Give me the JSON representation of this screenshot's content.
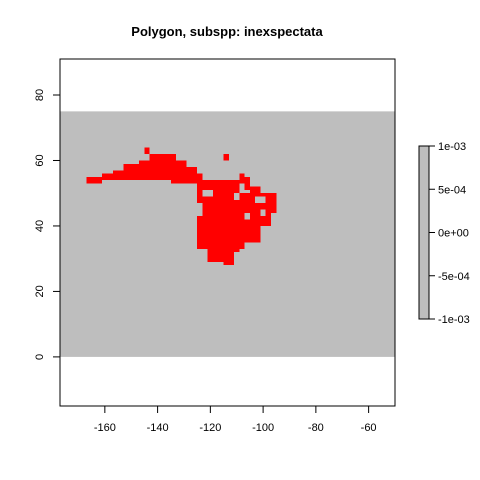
{
  "chart_data": {
    "type": "heatmap",
    "title": "Polygon, subspp: inexspectata",
    "xlabel": "",
    "ylabel": "",
    "xlim": [
      -177,
      -50
    ],
    "ylim": [
      -15,
      91
    ],
    "xticks": [
      -160,
      -140,
      -120,
      -100,
      -80,
      -60
    ],
    "yticks": [
      0,
      20,
      40,
      60,
      80
    ],
    "xtick_labels": [
      "-160",
      "-140",
      "-120",
      "-100",
      "-80",
      "-60"
    ],
    "ytick_labels": [
      "0",
      "20",
      "40",
      "60",
      "80"
    ],
    "raster_extent": {
      "xmin": -177,
      "xmax": -50,
      "ymin": 0,
      "ymax": 75
    },
    "background_color": "#bebebe",
    "presence_color": "#ff0000",
    "cell_size": 2,
    "presence_rows": [
      {
        "y": 63,
        "ranges": [
          [
            -145,
            -143
          ]
        ]
      },
      {
        "y": 61,
        "ranges": [
          [
            -115,
            -113
          ]
        ]
      },
      {
        "y": 59,
        "ranges": [
          [
            -141,
            -129
          ]
        ]
      },
      {
        "y": 57,
        "ranges": [
          [
            -149,
            -125
          ]
        ]
      },
      {
        "y": 55,
        "ranges": [
          [
            -161,
            -123
          ],
          [
            -109,
            -107
          ]
        ]
      },
      {
        "y": 53,
        "ranges": [
          [
            -125,
            -105
          ]
        ]
      },
      {
        "y": 51,
        "ranges": [
          [
            -121,
            -115
          ],
          [
            -113,
            -109
          ],
          [
            -105,
            -101
          ]
        ]
      },
      {
        "y": 49,
        "ranges": [
          [
            -117,
            -111
          ],
          [
            -109,
            -95
          ]
        ]
      },
      {
        "y": 47,
        "ranges": [
          [
            -117,
            -107
          ],
          [
            -101,
            -95
          ]
        ]
      },
      {
        "y": 45,
        "ranges": [
          [
            -115,
            -107
          ],
          [
            -105,
            -103
          ],
          [
            -101,
            -95
          ]
        ]
      },
      {
        "y": 43,
        "ranges": [
          [
            -115,
            -109
          ],
          [
            -105,
            -97
          ]
        ]
      },
      {
        "y": 41,
        "ranges": [
          [
            -115,
            -105
          ],
          [
            -101,
            -97
          ]
        ]
      },
      {
        "y": 39,
        "ranges": [
          [
            -115,
            -103
          ]
        ]
      },
      {
        "y": 37,
        "ranges": [
          [
            -115,
            -105
          ]
        ]
      },
      {
        "y": 35,
        "ranges": [
          [
            -117,
            -107
          ]
        ]
      },
      {
        "y": 33,
        "ranges": [
          [
            -117,
            -109
          ]
        ]
      },
      {
        "y": 31,
        "ranges": [
          [
            -117,
            -111
          ]
        ]
      },
      {
        "y": 29,
        "ranges": [
          [
            -115,
            -111
          ]
        ]
      }
    ],
    "presence_rects": [
      {
        "x": [
          -167,
          -161
        ],
        "y": [
          53,
          55
        ]
      },
      {
        "x": [
          -157,
          -151
        ],
        "y": [
          54,
          57
        ]
      },
      {
        "x": [
          -153,
          -147
        ],
        "y": [
          56,
          59
        ]
      },
      {
        "x": [
          -147,
          -137
        ],
        "y": [
          58,
          60
        ]
      },
      {
        "x": [
          -143,
          -133
        ],
        "y": [
          58,
          62
        ]
      },
      {
        "x": [
          -135,
          -125
        ],
        "y": [
          53,
          57
        ]
      },
      {
        "x": [
          -125,
          -113
        ],
        "y": [
          47,
          53
        ]
      },
      {
        "x": [
          -123,
          -107
        ],
        "y": [
          33,
          47
        ]
      },
      {
        "x": [
          -107,
          -97
        ],
        "y": [
          40,
          50
        ]
      },
      {
        "x": [
          -121,
          -113
        ],
        "y": [
          29,
          35
        ]
      },
      {
        "x": [
          -109,
          -105
        ],
        "y": [
          51,
          55
        ]
      },
      {
        "x": [
          -125,
          -115
        ],
        "y": [
          33,
          43
        ]
      },
      {
        "x": [
          -113,
          -101
        ],
        "y": [
          35,
          47
        ]
      }
    ],
    "holes": [
      {
        "x": [
          -123,
          -119
        ],
        "y": [
          49,
          51
        ]
      },
      {
        "x": [
          -109,
          -107
        ],
        "y": [
          51,
          53
        ]
      },
      {
        "x": [
          -107,
          -105
        ],
        "y": [
          42,
          44
        ]
      },
      {
        "x": [
          -101,
          -99
        ],
        "y": [
          43,
          45
        ]
      },
      {
        "x": [
          -103,
          -99
        ],
        "y": [
          47,
          49
        ]
      }
    ],
    "legend": {
      "placement": "right",
      "tick_values": [
        0.001,
        0.0005,
        0,
        -0.0005,
        -0.001
      ],
      "tick_labels": [
        "1e-03",
        "5e-04",
        "0e+00",
        "-5e-04",
        "-1e-03"
      ],
      "color": "#bebebe"
    }
  }
}
